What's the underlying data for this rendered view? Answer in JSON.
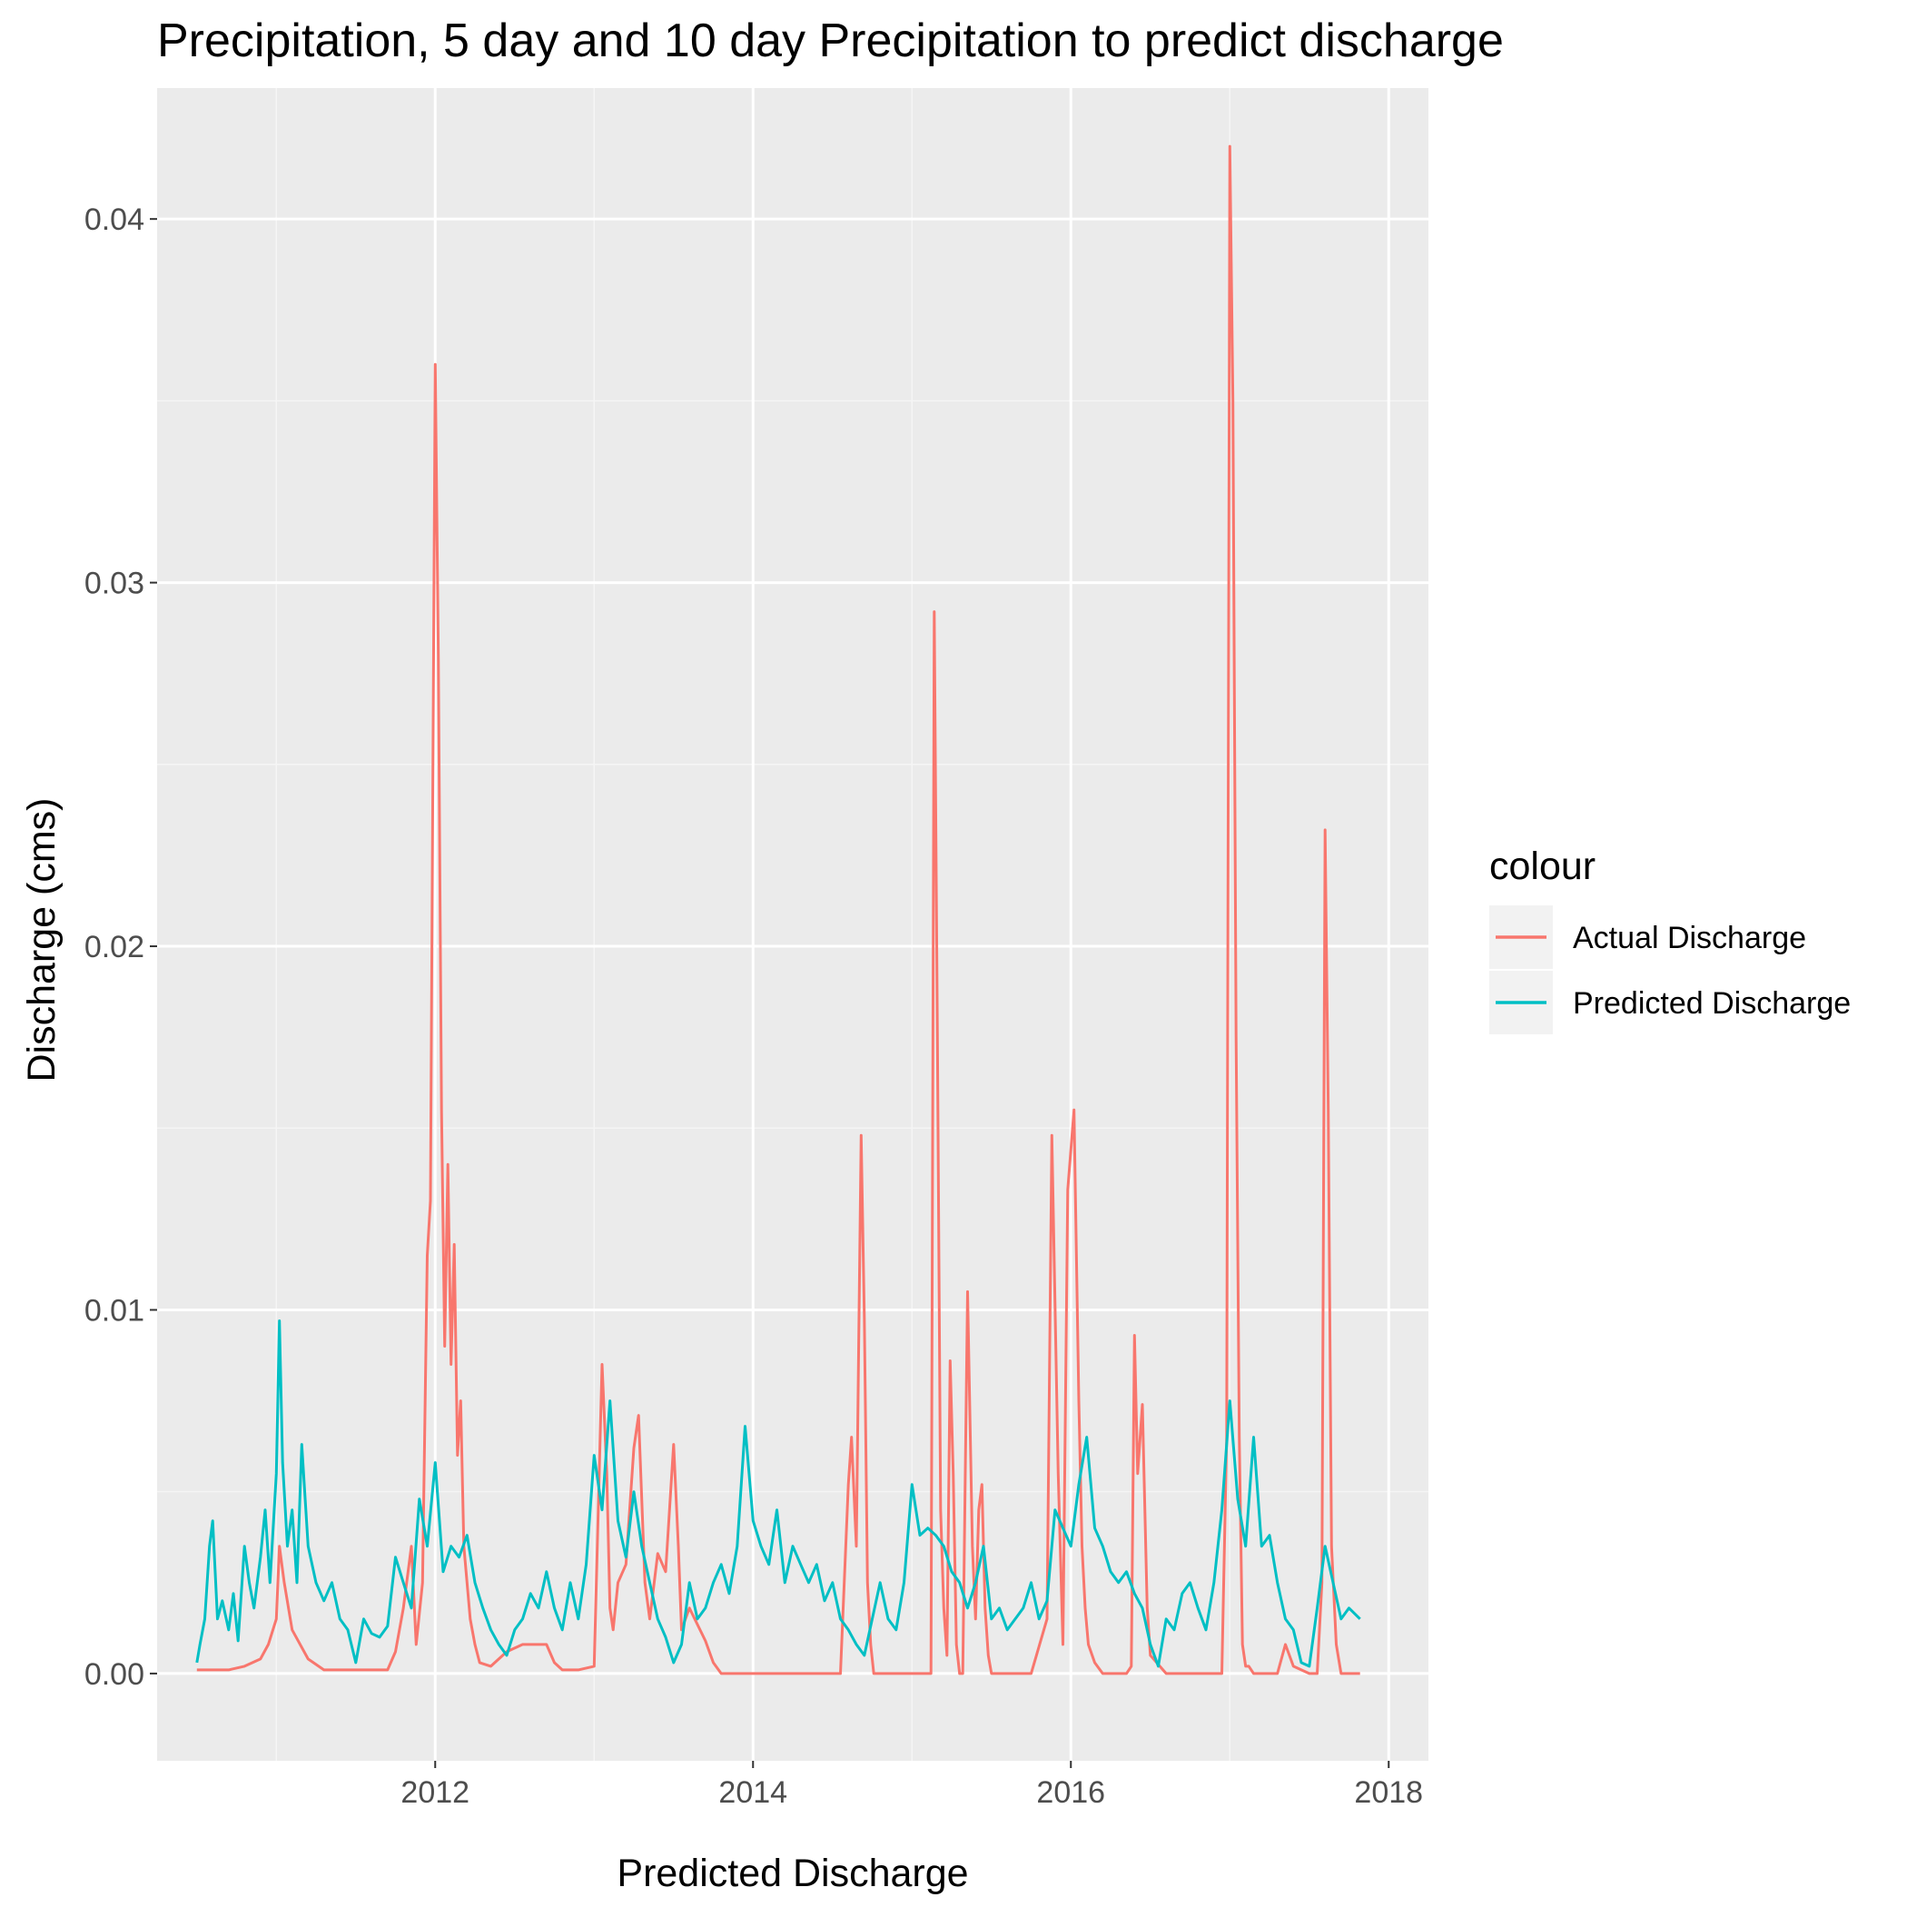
{
  "chart_data": {
    "type": "line",
    "title": "Precipitation, 5 day and 10 day Precipitation to predict discharge",
    "xlabel": "Predicted Discharge",
    "ylabel": "Discharge (cms)",
    "x_tick_labels": [
      "2012",
      "2014",
      "2016",
      "2018"
    ],
    "x_ticks": [
      2012,
      2014,
      2016,
      2018
    ],
    "y_tick_labels": [
      "0.00",
      "0.01",
      "0.02",
      "0.03",
      "0.04"
    ],
    "y_ticks": [
      0.0,
      0.01,
      0.02,
      0.03,
      0.04
    ],
    "xlim": [
      2010.25,
      2018.25
    ],
    "ylim": [
      -0.0024,
      0.0436
    ],
    "grid": true,
    "legend_title": "colour",
    "legend_position": "right",
    "series": [
      {
        "name": "Actual Discharge",
        "color": "#F8766D",
        "x": [
          2010.5,
          2010.6,
          2010.7,
          2010.8,
          2010.9,
          2010.95,
          2011.0,
          2011.02,
          2011.05,
          2011.1,
          2011.2,
          2011.3,
          2011.5,
          2011.7,
          2011.75,
          2011.8,
          2011.85,
          2011.88,
          2011.92,
          2011.95,
          2011.97,
          2012.0,
          2012.02,
          2012.04,
          2012.06,
          2012.08,
          2012.1,
          2012.12,
          2012.14,
          2012.16,
          2012.18,
          2012.2,
          2012.22,
          2012.25,
          2012.28,
          2012.35,
          2012.45,
          2012.55,
          2012.7,
          2012.75,
          2012.8,
          2012.9,
          2013.0,
          2013.05,
          2013.08,
          2013.1,
          2013.12,
          2013.15,
          2013.2,
          2013.25,
          2013.28,
          2013.32,
          2013.35,
          2013.4,
          2013.45,
          2013.5,
          2013.53,
          2013.55,
          2013.6,
          2013.7,
          2013.75,
          2013.8,
          2013.85,
          2013.9,
          2014.2,
          2014.5,
          2014.55,
          2014.6,
          2014.62,
          2014.65,
          2014.68,
          2014.7,
          2014.72,
          2014.74,
          2014.76,
          2014.8,
          2015.0,
          2015.1,
          2015.12,
          2015.14,
          2015.16,
          2015.18,
          2015.2,
          2015.22,
          2015.24,
          2015.26,
          2015.28,
          2015.3,
          2015.32,
          2015.35,
          2015.38,
          2015.4,
          2015.42,
          2015.44,
          2015.46,
          2015.48,
          2015.5,
          2015.6,
          2015.75,
          2015.85,
          2015.88,
          2015.92,
          2015.95,
          2015.98,
          2016.02,
          2016.05,
          2016.07,
          2016.09,
          2016.11,
          2016.15,
          2016.2,
          2016.3,
          2016.35,
          2016.38,
          2016.4,
          2016.42,
          2016.45,
          2016.48,
          2016.5,
          2016.6,
          2016.8,
          2016.9,
          2016.95,
          2016.98,
          2017.0,
          2017.02,
          2017.04,
          2017.06,
          2017.08,
          2017.1,
          2017.12,
          2017.15,
          2017.2,
          2017.3,
          2017.35,
          2017.4,
          2017.5,
          2017.55,
          2017.58,
          2017.6,
          2017.62,
          2017.64,
          2017.67,
          2017.7,
          2017.75,
          2017.82
        ],
        "y": [
          0.0001,
          0.0001,
          0.0001,
          0.0002,
          0.0004,
          0.0008,
          0.0015,
          0.0035,
          0.0025,
          0.0012,
          0.0004,
          0.0001,
          0.0001,
          0.0001,
          0.0006,
          0.0018,
          0.0035,
          0.0008,
          0.0025,
          0.0115,
          0.013,
          0.036,
          0.028,
          0.0155,
          0.009,
          0.014,
          0.0085,
          0.0118,
          0.006,
          0.0075,
          0.0035,
          0.0025,
          0.0015,
          0.0008,
          0.0003,
          0.0002,
          0.0006,
          0.0008,
          0.0008,
          0.0003,
          0.0001,
          0.0001,
          0.0002,
          0.0085,
          0.0055,
          0.0018,
          0.0012,
          0.0025,
          0.003,
          0.0062,
          0.0071,
          0.0025,
          0.0015,
          0.0033,
          0.0028,
          0.0063,
          0.0035,
          0.0012,
          0.0018,
          0.0009,
          0.0003,
          0.0,
          0.0,
          0.0,
          0.0,
          0.0,
          0.0,
          0.0052,
          0.0065,
          0.0035,
          0.0148,
          0.0098,
          0.0025,
          0.0008,
          0.0,
          0.0,
          0.0,
          0.0,
          0.0,
          0.0292,
          0.0175,
          0.0045,
          0.0018,
          0.0005,
          0.0086,
          0.0055,
          0.0008,
          0.0,
          0.0,
          0.0105,
          0.0035,
          0.0015,
          0.0045,
          0.0052,
          0.0018,
          0.0005,
          0.0,
          0.0,
          0.0,
          0.0015,
          0.0148,
          0.0055,
          0.0008,
          0.0133,
          0.0155,
          0.0075,
          0.0035,
          0.0018,
          0.0008,
          0.0003,
          0.0,
          0.0,
          0.0,
          0.0002,
          0.0093,
          0.0055,
          0.0074,
          0.0018,
          0.0005,
          0.0,
          0.0,
          0.0,
          0.0,
          0.0065,
          0.042,
          0.035,
          0.0175,
          0.0065,
          0.0008,
          0.0002,
          0.0002,
          0.0,
          0.0,
          0.0,
          0.0008,
          0.0002,
          0.0,
          0.0,
          0.0025,
          0.0232,
          0.0155,
          0.0035,
          0.0008,
          0.0,
          0.0,
          0.0
        ]
      },
      {
        "name": "Predicted Discharge",
        "color": "#00BFC4",
        "x": [
          2010.5,
          2010.52,
          2010.55,
          2010.58,
          2010.6,
          2010.63,
          2010.66,
          2010.7,
          2010.73,
          2010.76,
          2010.8,
          2010.83,
          2010.86,
          2010.9,
          2010.93,
          2010.96,
          2011.0,
          2011.02,
          2011.04,
          2011.07,
          2011.1,
          2011.13,
          2011.16,
          2011.2,
          2011.25,
          2011.3,
          2011.35,
          2011.4,
          2011.45,
          2011.5,
          2011.55,
          2011.6,
          2011.65,
          2011.7,
          2011.75,
          2011.8,
          2011.85,
          2011.9,
          2011.95,
          2012.0,
          2012.05,
          2012.1,
          2012.15,
          2012.2,
          2012.25,
          2012.3,
          2012.35,
          2012.4,
          2012.45,
          2012.5,
          2012.55,
          2012.6,
          2012.65,
          2012.7,
          2012.75,
          2012.8,
          2012.85,
          2012.9,
          2012.95,
          2013.0,
          2013.05,
          2013.1,
          2013.15,
          2013.2,
          2013.25,
          2013.3,
          2013.35,
          2013.4,
          2013.45,
          2013.5,
          2013.55,
          2013.6,
          2013.65,
          2013.7,
          2013.75,
          2013.8,
          2013.85,
          2013.9,
          2013.95,
          2014.0,
          2014.05,
          2014.1,
          2014.15,
          2014.2,
          2014.25,
          2014.3,
          2014.35,
          2014.4,
          2014.45,
          2014.5,
          2014.55,
          2014.6,
          2014.65,
          2014.7,
          2014.75,
          2014.8,
          2014.85,
          2014.9,
          2014.95,
          2015.0,
          2015.05,
          2015.1,
          2015.15,
          2015.2,
          2015.25,
          2015.3,
          2015.35,
          2015.4,
          2015.45,
          2015.5,
          2015.55,
          2015.6,
          2015.65,
          2015.7,
          2015.75,
          2015.8,
          2015.85,
          2015.9,
          2015.95,
          2016.0,
          2016.05,
          2016.1,
          2016.15,
          2016.2,
          2016.25,
          2016.3,
          2016.35,
          2016.4,
          2016.45,
          2016.5,
          2016.55,
          2016.6,
          2016.65,
          2016.7,
          2016.75,
          2016.8,
          2016.85,
          2016.9,
          2016.95,
          2017.0,
          2017.05,
          2017.1,
          2017.15,
          2017.2,
          2017.25,
          2017.3,
          2017.35,
          2017.4,
          2017.45,
          2017.5,
          2017.55,
          2017.6,
          2017.65,
          2017.7,
          2017.75,
          2017.82
        ],
        "y": [
          0.0003,
          0.0008,
          0.0015,
          0.0035,
          0.0042,
          0.0015,
          0.002,
          0.0012,
          0.0022,
          0.0009,
          0.0035,
          0.0025,
          0.0018,
          0.0032,
          0.0045,
          0.0025,
          0.0055,
          0.0097,
          0.0058,
          0.0035,
          0.0045,
          0.0025,
          0.0063,
          0.0035,
          0.0025,
          0.002,
          0.0025,
          0.0015,
          0.0012,
          0.0003,
          0.0015,
          0.0011,
          0.001,
          0.0013,
          0.0032,
          0.0025,
          0.0018,
          0.0048,
          0.0035,
          0.0058,
          0.0028,
          0.0035,
          0.0032,
          0.0038,
          0.0025,
          0.0018,
          0.0012,
          0.0008,
          0.0005,
          0.0012,
          0.0015,
          0.0022,
          0.0018,
          0.0028,
          0.0018,
          0.0012,
          0.0025,
          0.0015,
          0.003,
          0.006,
          0.0045,
          0.0075,
          0.0042,
          0.0032,
          0.005,
          0.0035,
          0.0025,
          0.0015,
          0.001,
          0.0003,
          0.0008,
          0.0025,
          0.0015,
          0.0018,
          0.0025,
          0.003,
          0.0022,
          0.0035,
          0.0068,
          0.0042,
          0.0035,
          0.003,
          0.0045,
          0.0025,
          0.0035,
          0.003,
          0.0025,
          0.003,
          0.002,
          0.0025,
          0.0015,
          0.0012,
          0.0008,
          0.0005,
          0.0015,
          0.0025,
          0.0015,
          0.0012,
          0.0025,
          0.0052,
          0.0038,
          0.004,
          0.0038,
          0.0035,
          0.0028,
          0.0025,
          0.0018,
          0.0025,
          0.0035,
          0.0015,
          0.0018,
          0.0012,
          0.0015,
          0.0018,
          0.0025,
          0.0015,
          0.002,
          0.0045,
          0.004,
          0.0035,
          0.0052,
          0.0065,
          0.004,
          0.0035,
          0.0028,
          0.0025,
          0.0028,
          0.0022,
          0.0018,
          0.0008,
          0.0002,
          0.0015,
          0.0012,
          0.0022,
          0.0025,
          0.0018,
          0.0012,
          0.0025,
          0.0045,
          0.0075,
          0.0048,
          0.0035,
          0.0065,
          0.0035,
          0.0038,
          0.0025,
          0.0015,
          0.0012,
          0.0003,
          0.0002,
          0.0018,
          0.0035,
          0.0025,
          0.0015,
          0.0018,
          0.0015
        ]
      }
    ]
  }
}
